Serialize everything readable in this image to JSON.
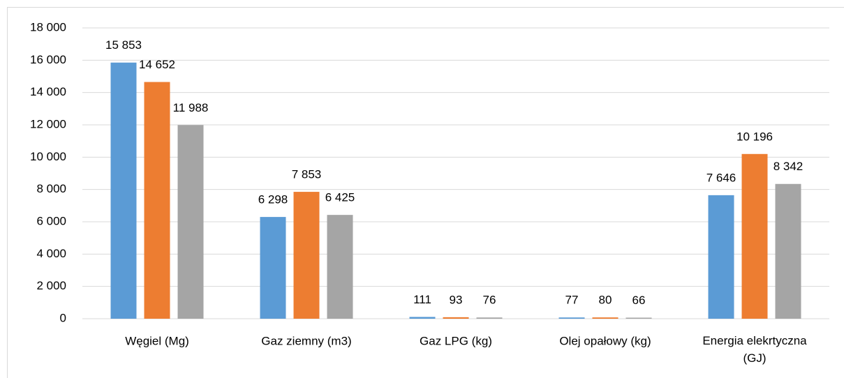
{
  "chart_data": {
    "type": "bar",
    "categories": [
      "Węgiel (Mg)",
      "Gaz ziemny (m3)",
      "Gaz LPG (kg)",
      "Olej opałowy (kg)",
      "Energia elekrtyczna (GJ)"
    ],
    "series": [
      {
        "color": "#5b9bd5",
        "values": [
          15853,
          6298,
          111,
          77,
          7646
        ],
        "value_labels": [
          "15 853",
          "6 298",
          "111",
          "77",
          "7 646"
        ]
      },
      {
        "color": "#ed7d31",
        "values": [
          14652,
          7853,
          93,
          80,
          10196
        ],
        "value_labels": [
          "14 652",
          "7 853",
          "93",
          "80",
          "10 196"
        ]
      },
      {
        "color": "#a5a5a5",
        "values": [
          11988,
          6425,
          76,
          66,
          8342
        ],
        "value_labels": [
          "11 988",
          "6 425",
          "76",
          "66",
          "8 342"
        ]
      }
    ],
    "ylim": [
      0,
      18000
    ],
    "yticks": [
      0,
      {
        "value": 2000,
        "label": "2 000"
      },
      {
        "value": 4000,
        "label": "4 000"
      },
      {
        "value": 6000,
        "label": "6 000"
      },
      {
        "value": 8000,
        "label": "8 000"
      },
      {
        "value": 10000,
        "label": "10 000"
      },
      {
        "value": 12000,
        "label": "12 000"
      },
      {
        "value": 14000,
        "label": "14 000"
      },
      {
        "value": 16000,
        "label": "16 000"
      },
      {
        "value": 18000,
        "label": "18 000"
      }
    ],
    "grid": true
  }
}
